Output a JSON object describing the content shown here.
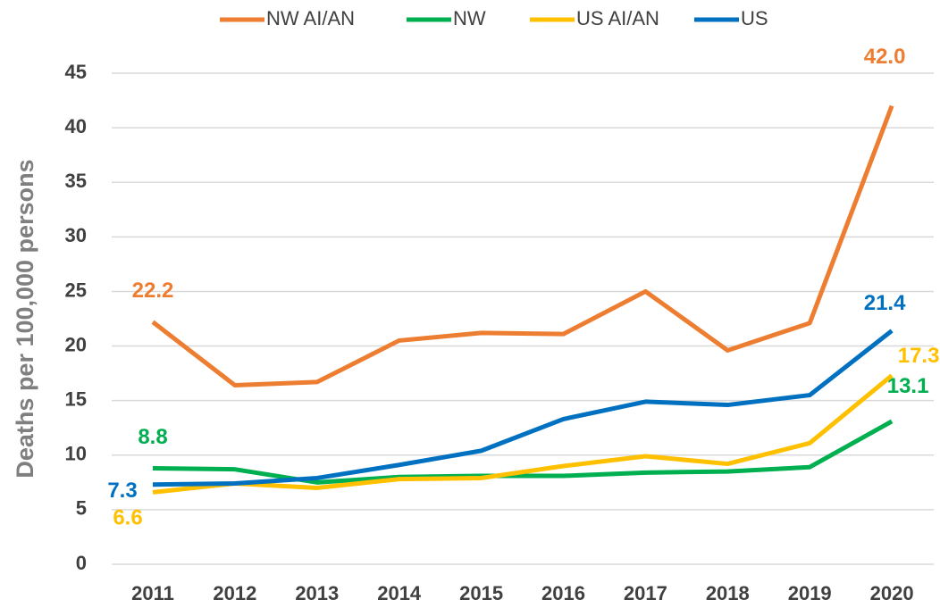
{
  "chart_data": {
    "type": "line",
    "y_label": "Deaths per 100,000 persons",
    "categories": [
      "2011",
      "2012",
      "2013",
      "2014",
      "2015",
      "2016",
      "2017",
      "2018",
      "2019",
      "2020"
    ],
    "series": [
      {
        "name": "NW AI/AN",
        "color": "#ED7D31",
        "values": [
          22.2,
          16.4,
          16.7,
          20.5,
          21.2,
          21.1,
          25.0,
          19.6,
          22.1,
          42.0
        ],
        "value_labels": [
          "22.2",
          null,
          null,
          null,
          null,
          null,
          null,
          null,
          null,
          "42.0"
        ]
      },
      {
        "name": "NW",
        "color": "#00B050",
        "values": [
          8.8,
          8.7,
          7.5,
          8.0,
          8.1,
          8.1,
          8.4,
          8.5,
          8.9,
          13.1
        ],
        "value_labels": [
          "8.8",
          null,
          null,
          null,
          null,
          null,
          null,
          null,
          null,
          "13.1"
        ]
      },
      {
        "name": "US AI/AN",
        "color": "#FFC000",
        "values": [
          6.6,
          7.4,
          7.0,
          7.8,
          7.9,
          9.0,
          9.9,
          9.2,
          11.1,
          17.3
        ],
        "value_labels": [
          "6.6",
          null,
          null,
          null,
          null,
          null,
          null,
          null,
          null,
          "17.3"
        ]
      },
      {
        "name": "US",
        "color": "#0070C0",
        "values": [
          7.3,
          7.4,
          7.9,
          9.1,
          10.4,
          13.3,
          14.9,
          14.6,
          15.5,
          21.4
        ],
        "value_labels": [
          "7.3",
          null,
          null,
          null,
          null,
          null,
          null,
          null,
          null,
          "21.4"
        ]
      }
    ],
    "ylim": [
      0,
      45
    ],
    "yticks": [
      0,
      5,
      10,
      15,
      20,
      25,
      30,
      35,
      40,
      45
    ],
    "grid": true,
    "legend": "top"
  }
}
